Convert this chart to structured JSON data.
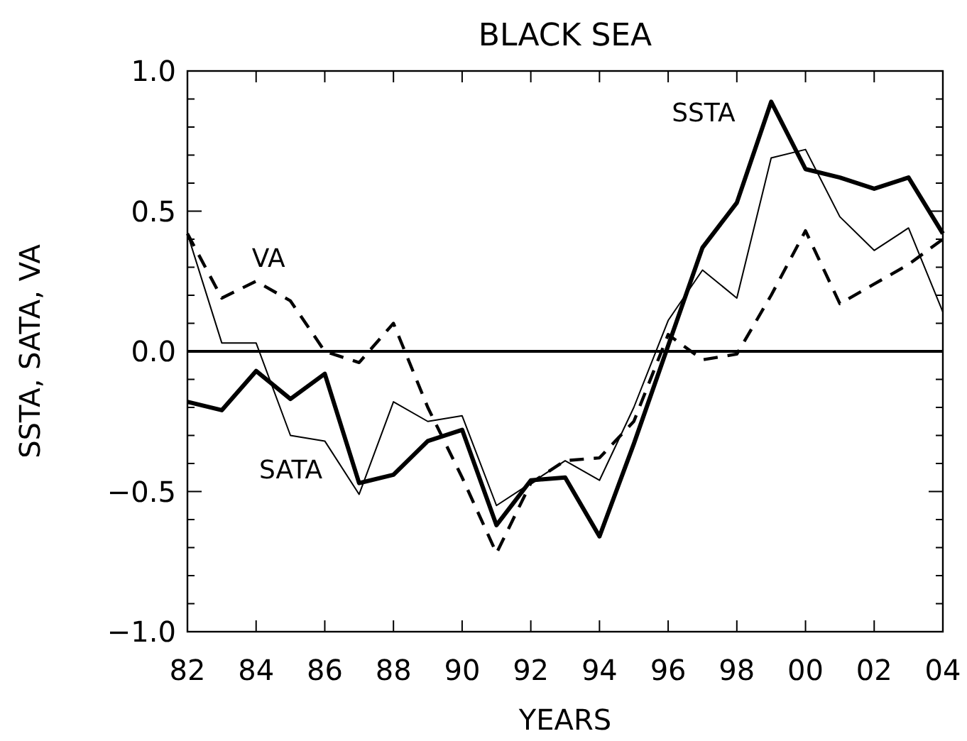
{
  "chart_data": {
    "type": "line",
    "title": "BLACK SEA",
    "xlabel": "YEARS",
    "ylabel": "SSTA, SATA, VA",
    "x": [
      1982,
      1983,
      1984,
      1985,
      1986,
      1987,
      1988,
      1989,
      1990,
      1991,
      1992,
      1993,
      1994,
      1995,
      1996,
      1997,
      1998,
      1999,
      2000,
      2001,
      2002,
      2003,
      2004
    ],
    "series": [
      {
        "name": "SSTA",
        "color": "#000000",
        "line_style": "solid",
        "values": [
          -0.18,
          -0.21,
          -0.07,
          -0.17,
          -0.08,
          -0.47,
          -0.44,
          -0.32,
          -0.28,
          -0.62,
          -0.46,
          -0.45,
          -0.66,
          -0.33,
          0.02,
          0.37,
          0.53,
          0.89,
          0.65,
          0.62,
          0.58,
          0.62,
          0.42
        ]
      },
      {
        "name": "SATA",
        "color": "#000000",
        "line_style": "solid",
        "values": [
          0.42,
          0.03,
          0.03,
          -0.3,
          -0.32,
          -0.51,
          -0.18,
          -0.25,
          -0.23,
          -0.55,
          -0.47,
          -0.39,
          -0.46,
          -0.2,
          0.11,
          0.29,
          0.19,
          0.69,
          0.72,
          0.48,
          0.36,
          0.44,
          0.14
        ]
      },
      {
        "name": "VA",
        "color": "#000000",
        "line_style": "dashed",
        "values": [
          0.42,
          0.19,
          0.25,
          0.18,
          0.0,
          -0.04,
          0.1,
          -0.2,
          -0.45,
          -0.72,
          -0.47,
          -0.39,
          -0.38,
          -0.25,
          0.06,
          -0.03,
          -0.01,
          0.2,
          0.43,
          0.17,
          0.24,
          0.31,
          0.4
        ]
      }
    ],
    "xlim": [
      1982,
      2004
    ],
    "xticks": [
      {
        "value": 1982,
        "label": "82"
      },
      {
        "value": 1984,
        "label": "84"
      },
      {
        "value": 1986,
        "label": "86"
      },
      {
        "value": 1988,
        "label": "88"
      },
      {
        "value": 1990,
        "label": "90"
      },
      {
        "value": 1992,
        "label": "92"
      },
      {
        "value": 1994,
        "label": "94"
      },
      {
        "value": 1996,
        "label": "96"
      },
      {
        "value": 1998,
        "label": "98"
      },
      {
        "value": 2000,
        "label": "00"
      },
      {
        "value": 2002,
        "label": "02"
      },
      {
        "value": 2004,
        "label": "04"
      }
    ],
    "ylim": [
      -1,
      1
    ],
    "yticks": [
      {
        "value": -1,
        "label": "−1.0"
      },
      {
        "value": -0.9,
        "label": null
      },
      {
        "value": -0.8,
        "label": null
      },
      {
        "value": -0.7,
        "label": null
      },
      {
        "value": -0.6,
        "label": null
      },
      {
        "value": -0.5,
        "label": "−0.5"
      },
      {
        "value": -0.4,
        "label": null
      },
      {
        "value": -0.3,
        "label": null
      },
      {
        "value": -0.2,
        "label": null
      },
      {
        "value": -0.1,
        "label": null
      },
      {
        "value": 0,
        "label": "0.0"
      },
      {
        "value": 0.1,
        "label": null
      },
      {
        "value": 0.2,
        "label": null
      },
      {
        "value": 0.3,
        "label": null
      },
      {
        "value": 0.4,
        "label": null
      },
      {
        "value": 0.5,
        "label": "0.5"
      },
      {
        "value": 0.6,
        "label": null
      },
      {
        "value": 0.7,
        "label": null
      },
      {
        "value": 0.8,
        "label": null
      },
      {
        "value": 0.9,
        "label": null
      },
      {
        "value": 1,
        "label": "1.0"
      }
    ],
    "ref_lines": [
      {
        "axis": "y",
        "value": 0,
        "color": "#000000"
      }
    ],
    "grid": false,
    "marker": "none"
  }
}
